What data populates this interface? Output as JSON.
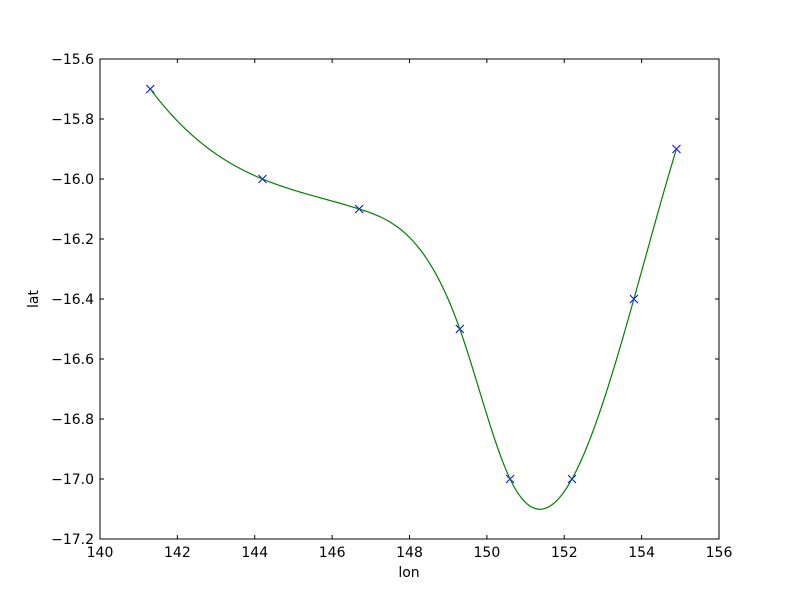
{
  "chart_data": {
    "type": "line",
    "title": "",
    "xlabel": "lon",
    "ylabel": "lat",
    "xlim": [
      140,
      156
    ],
    "ylim": [
      -17.2,
      -15.6
    ],
    "xticks": [
      "140",
      "142",
      "144",
      "146",
      "148",
      "150",
      "152",
      "154",
      "156"
    ],
    "yticks": [
      "−15.6",
      "−15.8",
      "−16.0",
      "−16.2",
      "−16.4",
      "−16.6",
      "−16.8",
      "−17.0",
      "−17.2"
    ],
    "grid": false,
    "series": [
      {
        "style": "markers",
        "marker": "x",
        "color": "#0000ff",
        "x": [
          141.3,
          144.2,
          146.7,
          149.3,
          150.6,
          152.2,
          153.8,
          154.9
        ],
        "y": [
          -15.7,
          -16.0,
          -16.1,
          -16.5,
          -17.0,
          -17.0,
          -16.4,
          -15.9
        ]
      },
      {
        "style": "line",
        "interpolation": "cubic spline through the markers",
        "color": "#008000"
      }
    ]
  }
}
